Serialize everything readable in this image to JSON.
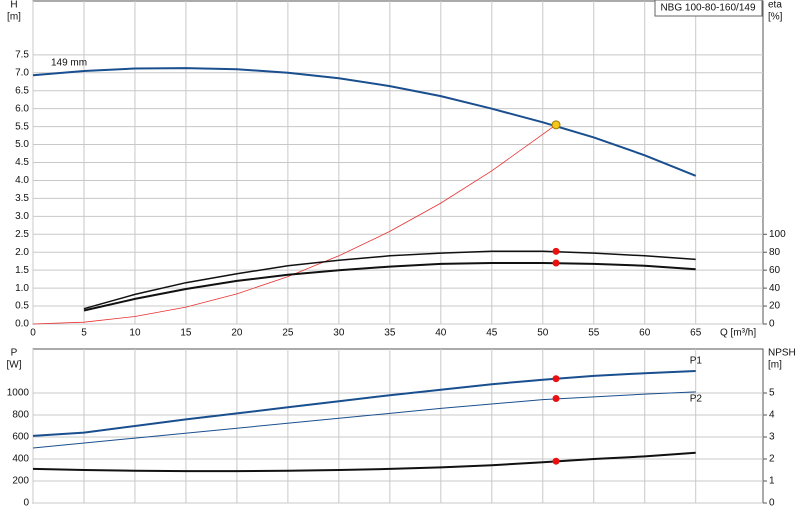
{
  "chart_data": [
    {
      "type": "line",
      "title": "NBG 100-80-160/149",
      "ylabel": "H",
      "yunit": "[m]",
      "y2label": "eta",
      "y2unit": "[%]",
      "xlabel": "Q [m³/h]",
      "xlim": [
        0,
        71.6
      ],
      "xticks": [
        0,
        5,
        10,
        15,
        20,
        25,
        30,
        35,
        40,
        45,
        50,
        55,
        60,
        65
      ],
      "ylim": [
        0,
        9
      ],
      "yticks": [
        {
          "value": 0,
          "label": "0.0"
        },
        {
          "value": 0.5,
          "label": "0.5"
        },
        {
          "value": 1,
          "label": "1.0"
        },
        {
          "value": 1.5,
          "label": "1.5"
        },
        {
          "value": 2,
          "label": "2.0"
        },
        {
          "value": 2.5,
          "label": "2.5"
        },
        {
          "value": 3,
          "label": "3.0"
        },
        {
          "value": 3.5,
          "label": "3.5"
        },
        {
          "value": 4,
          "label": "4.0"
        },
        {
          "value": 4.5,
          "label": "4.5"
        },
        {
          "value": 5,
          "label": "5.0"
        },
        {
          "value": 5.5,
          "label": "5.5"
        },
        {
          "value": 6,
          "label": "6.0"
        },
        {
          "value": 6.5,
          "label": "6.5"
        },
        {
          "value": 7,
          "label": "7.0"
        },
        {
          "value": 7.5,
          "label": "7.5"
        }
      ],
      "y2lim": [
        0,
        360
      ],
      "y2ticks": [
        0,
        20,
        40,
        60,
        80,
        100
      ],
      "grid": true,
      "series": [
        {
          "name": "149 mm",
          "color": "#1a4f8f",
          "width": 2,
          "x": [
            0,
            5,
            10,
            15,
            20,
            25,
            30,
            35,
            40,
            45,
            50,
            55,
            60,
            65
          ],
          "values": [
            6.93,
            7.05,
            7.12,
            7.13,
            7.1,
            7.0,
            6.85,
            6.63,
            6.35,
            6.0,
            5.62,
            5.2,
            4.7,
            4.13
          ]
        },
        {
          "color": "#e83030",
          "width": 0.8,
          "x": [
            0,
            5,
            10,
            15,
            20,
            25,
            30,
            35,
            40,
            45,
            51.3
          ],
          "values": [
            0,
            0.05,
            0.21,
            0.47,
            0.84,
            1.32,
            1.9,
            2.58,
            3.37,
            4.27,
            5.55
          ]
        },
        {
          "color": "#111111",
          "width": 1.5,
          "axis": "y2",
          "x": [
            5,
            10,
            15,
            20,
            25,
            30,
            35,
            40,
            45,
            50,
            55,
            60,
            65
          ],
          "values": [
            17,
            33,
            46,
            56,
            65,
            71,
            76,
            79,
            81,
            81,
            79,
            76,
            72
          ]
        },
        {
          "color": "#111111",
          "width": 2,
          "axis": "y2",
          "x": [
            5,
            10,
            15,
            20,
            25,
            30,
            35,
            40,
            45,
            50,
            55,
            60,
            65
          ],
          "values": [
            15,
            28,
            39,
            48,
            55,
            60,
            64,
            67,
            68,
            68,
            67,
            65,
            61
          ]
        },
        {
          "color": "#f5c518",
          "marker": true,
          "x": [
            51.3
          ],
          "values": [
            5.55
          ]
        },
        {
          "color": "#e81010",
          "marker": true,
          "axis": "y2",
          "x": [
            51.3,
            51.3
          ],
          "values": [
            81,
            68
          ]
        }
      ]
    },
    {
      "type": "line",
      "ylabel": "P",
      "yunit": "[W]",
      "y2label": "NPSH",
      "y2unit": "[m]",
      "xlim": [
        0,
        71.6
      ],
      "xticks": [
        0,
        5,
        10,
        15,
        20,
        25,
        30,
        35,
        40,
        45,
        50,
        55,
        60,
        65
      ],
      "ylim": [
        0,
        1400
      ],
      "yticks": [
        0,
        200,
        400,
        600,
        800,
        1000
      ],
      "y2lim": [
        0,
        7
      ],
      "y2ticks": [
        0,
        1,
        2,
        3,
        4,
        5
      ],
      "grid": true,
      "series": [
        {
          "name": "P1",
          "color": "#1a4f8f",
          "width": 2,
          "x": [
            0,
            5,
            10,
            15,
            20,
            25,
            30,
            35,
            40,
            45,
            50,
            55,
            60,
            65
          ],
          "values": [
            610,
            640,
            700,
            760,
            815,
            870,
            925,
            980,
            1030,
            1080,
            1120,
            1155,
            1180,
            1200
          ]
        },
        {
          "name": "P2",
          "color": "#1a4f8f",
          "width": 1,
          "x": [
            0,
            10,
            20,
            30,
            40,
            50,
            60,
            65
          ],
          "values": [
            500,
            590,
            680,
            770,
            860,
            940,
            990,
            1010
          ]
        },
        {
          "color": "#111111",
          "width": 2,
          "axis": "y2",
          "x": [
            0,
            5,
            10,
            15,
            20,
            25,
            30,
            35,
            40,
            45,
            50,
            55,
            60,
            65
          ],
          "values": [
            1.55,
            1.5,
            1.47,
            1.45,
            1.45,
            1.47,
            1.5,
            1.55,
            1.62,
            1.72,
            1.85,
            2.0,
            2.12,
            2.28
          ]
        },
        {
          "color": "#e81010",
          "marker": true,
          "x": [
            51.3,
            51.3
          ],
          "values": [
            1130,
            950
          ]
        },
        {
          "color": "#e81010",
          "marker": true,
          "axis": "y2",
          "x": [
            51.3
          ],
          "values": [
            1.9
          ]
        }
      ]
    }
  ]
}
